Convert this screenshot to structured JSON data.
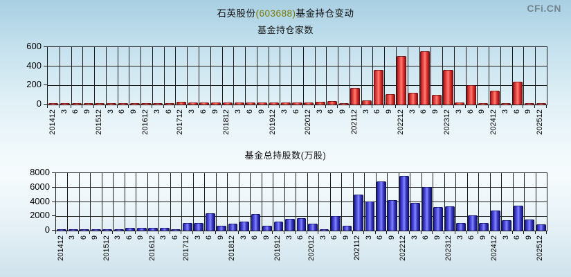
{
  "page": {
    "title": {
      "part1": "石英股份",
      "code": "(603688)",
      "part2": "基金持仓变动"
    },
    "logo": "CFi.CN"
  },
  "colors": {
    "title_code": "#7a7a00",
    "logo": "#75858f",
    "red_bar": "#dd2222",
    "blue_bar": "#3333cc",
    "grid": "#000000"
  },
  "chart_data": [
    {
      "type": "bar",
      "title": "基金持仓家数",
      "series_color": "red",
      "ylim": [
        0,
        600
      ],
      "yticks": [
        0,
        200,
        400,
        600
      ],
      "grid": true,
      "legend": "none",
      "categories": [
        "201412",
        "3",
        "6",
        "9",
        "201512",
        "3",
        "6",
        "9",
        "201612",
        "3",
        "6",
        "201712",
        "3",
        "6",
        "9",
        "201812",
        "3",
        "6",
        "9",
        "201912",
        "3",
        "6",
        "202012",
        "3",
        "6",
        "9",
        "202112",
        "3",
        "6",
        "9",
        "202212",
        "3",
        "6",
        "9",
        "202312",
        "3",
        "6",
        "9",
        "202412",
        "3",
        "6",
        "9",
        "202512"
      ],
      "values": [
        8,
        8,
        3,
        10,
        12,
        4,
        6,
        5,
        3,
        3,
        5,
        26,
        25,
        25,
        22,
        22,
        22,
        20,
        22,
        19,
        20,
        22,
        22,
        30,
        38,
        10,
        170,
        45,
        365,
        105,
        505,
        120,
        560,
        100,
        365,
        23,
        200,
        13,
        145,
        8,
        235,
        18,
        18
      ]
    },
    {
      "type": "bar",
      "title": "基金总持股数(万股)",
      "series_color": "blue",
      "ylim": [
        0,
        8000
      ],
      "yticks": [
        0,
        2000,
        4000,
        6000,
        8000
      ],
      "grid": true,
      "legend": "none",
      "categories": [
        "201412",
        "3",
        "6",
        "9",
        "201512",
        "3",
        "6",
        "9",
        "201612",
        "3",
        "6",
        "201712",
        "3",
        "6",
        "9",
        "201812",
        "3",
        "6",
        "9",
        "201912",
        "3",
        "6",
        "202012",
        "3",
        "6",
        "9",
        "202112",
        "3",
        "6",
        "9",
        "202212",
        "3",
        "6",
        "9",
        "202312",
        "3",
        "6",
        "9",
        "202412",
        "3",
        "6",
        "9",
        "202512"
      ],
      "values": [
        90,
        90,
        40,
        40,
        200,
        70,
        430,
        430,
        370,
        370,
        100,
        1050,
        1080,
        2400,
        650,
        1000,
        1240,
        2300,
        680,
        1300,
        1600,
        1750,
        1000,
        200,
        2000,
        650,
        5050,
        4000,
        6800,
        4250,
        7600,
        3840,
        6050,
        3300,
        3400,
        1080,
        2130,
        1015,
        2830,
        1400,
        3460,
        1550,
        830
      ]
    }
  ]
}
